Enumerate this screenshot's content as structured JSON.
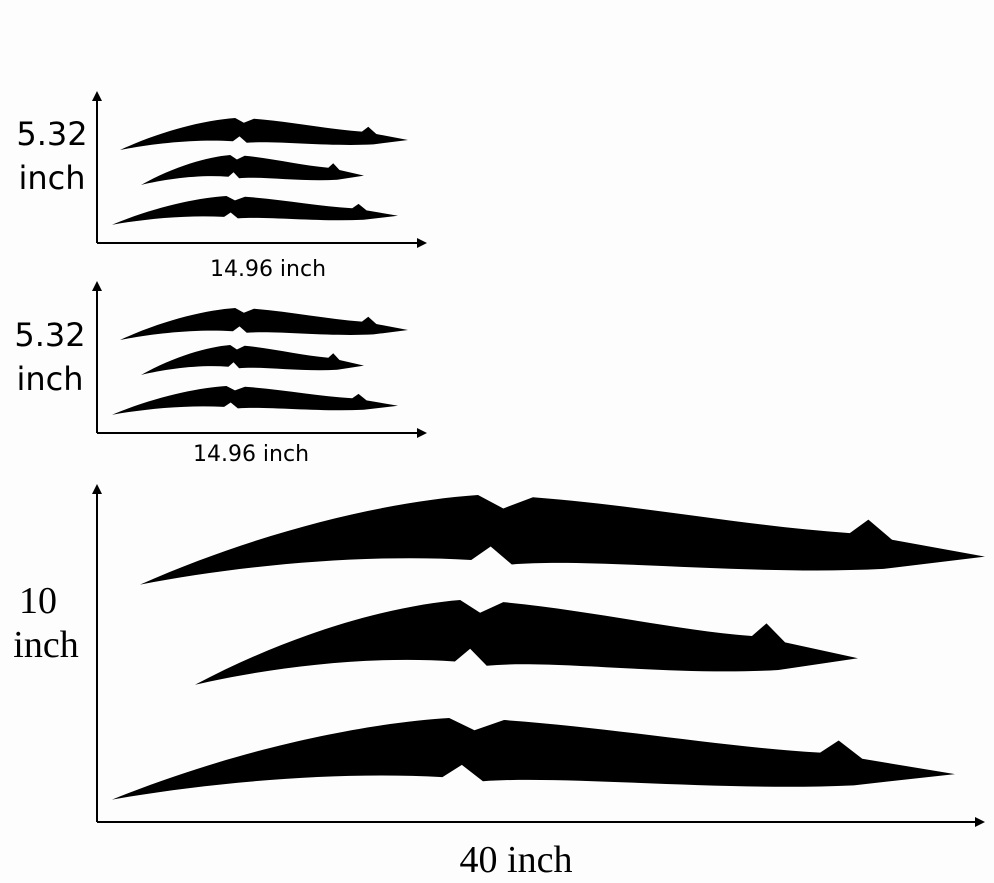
{
  "panels": [
    {
      "height_label": [
        "5.32",
        "inch"
      ],
      "width_label": "14.96 inch"
    },
    {
      "height_label": [
        "5.32",
        "inch"
      ],
      "width_label": "14.96 inch"
    },
    {
      "height_label": [
        "10",
        "inch"
      ],
      "width_label": "40 inch"
    }
  ]
}
